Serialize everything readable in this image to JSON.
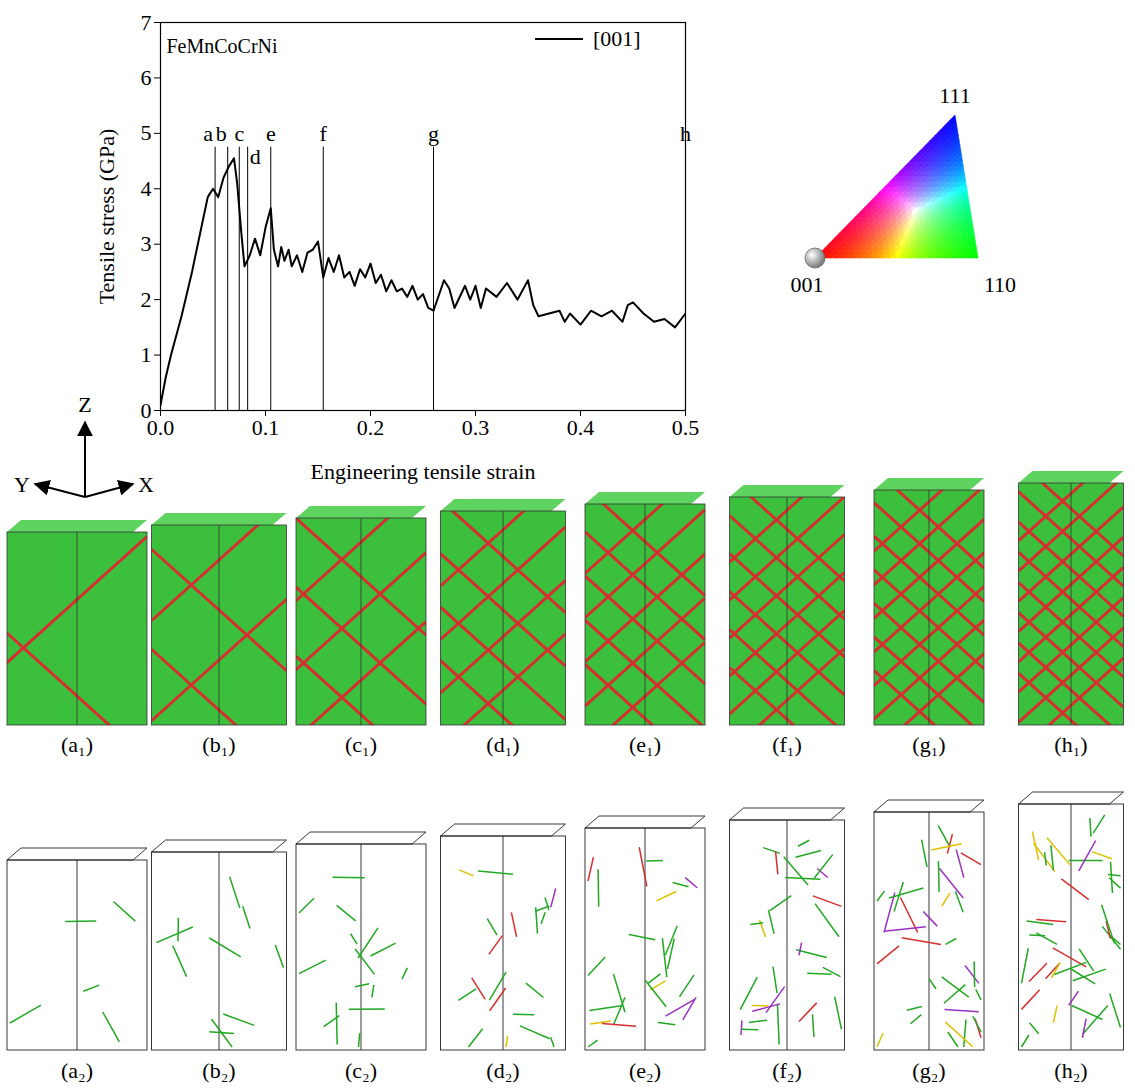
{
  "chart_data": {
    "type": "line",
    "title": "FeMnCoCrNi",
    "x_label": "Engineering tensile strain",
    "y_label": "Tensile stress (GPa)",
    "xlim": [
      0,
      0.5
    ],
    "xticks": [
      {
        "value": 0,
        "label": "0.0"
      },
      {
        "value": 0.1,
        "label": "0.1"
      },
      {
        "value": 0.2,
        "label": "0.2"
      },
      {
        "value": 0.3,
        "label": "0.3"
      },
      {
        "value": 0.4,
        "label": "0.4"
      },
      {
        "value": 0.5,
        "label": "0.5"
      }
    ],
    "ylim": [
      0,
      7
    ],
    "yticks": [
      0,
      1,
      2,
      3,
      4,
      5,
      6,
      7
    ],
    "legend": "top-right",
    "x": [
      0,
      0.005,
      0.01,
      0.02,
      0.03,
      0.04,
      0.045,
      0.05,
      0.055,
      0.06,
      0.065,
      0.07,
      0.073,
      0.077,
      0.08,
      0.085,
      0.09,
      0.095,
      0.1,
      0.105,
      0.108,
      0.112,
      0.115,
      0.118,
      0.122,
      0.125,
      0.13,
      0.135,
      0.14,
      0.145,
      0.15,
      0.155,
      0.16,
      0.165,
      0.17,
      0.175,
      0.18,
      0.185,
      0.19,
      0.195,
      0.2,
      0.205,
      0.21,
      0.215,
      0.22,
      0.225,
      0.23,
      0.235,
      0.24,
      0.245,
      0.25,
      0.255,
      0.26,
      0.27,
      0.275,
      0.28,
      0.29,
      0.295,
      0.3,
      0.305,
      0.31,
      0.32,
      0.33,
      0.34,
      0.35,
      0.355,
      0.36,
      0.37,
      0.38,
      0.385,
      0.39,
      0.4,
      0.41,
      0.42,
      0.43,
      0.44,
      0.445,
      0.45,
      0.46,
      0.47,
      0.48,
      0.49,
      0.5
    ],
    "series": [
      {
        "name": "[001]",
        "color": "#000000",
        "values": [
          0.1,
          0.6,
          1.0,
          1.7,
          2.5,
          3.4,
          3.85,
          4.0,
          3.85,
          4.2,
          4.4,
          4.55,
          4.1,
          3.2,
          2.6,
          2.8,
          3.1,
          2.8,
          3.3,
          3.65,
          2.9,
          2.6,
          2.95,
          2.7,
          2.9,
          2.6,
          2.8,
          2.5,
          2.85,
          2.9,
          3.05,
          2.4,
          2.75,
          2.5,
          2.8,
          2.4,
          2.5,
          2.25,
          2.55,
          2.4,
          2.65,
          2.3,
          2.45,
          2.15,
          2.35,
          2.15,
          2.2,
          2.05,
          2.25,
          2.0,
          2.1,
          1.85,
          1.8,
          2.35,
          2.2,
          1.85,
          2.25,
          2.0,
          2.25,
          1.85,
          2.2,
          2.05,
          2.3,
          2.0,
          2.35,
          1.9,
          1.7,
          1.75,
          1.8,
          1.6,
          1.75,
          1.55,
          1.8,
          1.7,
          1.8,
          1.6,
          1.9,
          1.95,
          1.75,
          1.6,
          1.65,
          1.5,
          1.75
        ]
      }
    ],
    "annotations": [
      {
        "label": "a",
        "x": 0.052,
        "y": 4.75
      },
      {
        "label": "b",
        "x": 0.064,
        "y": 4.75
      },
      {
        "label": "c",
        "x": 0.075,
        "y": 4.75
      },
      {
        "label": "d",
        "x": 0.083,
        "y": 4.75
      },
      {
        "label": "e",
        "x": 0.105,
        "y": 4.75
      },
      {
        "label": "f",
        "x": 0.155,
        "y": 4.75
      },
      {
        "label": "g",
        "x": 0.26,
        "y": 4.75
      },
      {
        "label": "h",
        "x": 0.5,
        "y": 4.75
      }
    ]
  },
  "inverse_pole_figure": {
    "corners": {
      "top": "111",
      "left": "001",
      "right": "110"
    },
    "marked_corner": "001"
  },
  "axes_triad": {
    "up": "Z",
    "left": "Y",
    "right": "X"
  },
  "panels": {
    "rows": [
      [
        "(a₁)",
        "(b₁)",
        "(c₁)",
        "(d₁)",
        "(e₁)",
        "(f₁)",
        "(g₁)",
        "(h₁)"
      ],
      [
        "(a₂)",
        "(b₂)",
        "(c₂)",
        "(d₂)",
        "(e₂)",
        "(f₂)",
        "(g₂)",
        "(h₂)"
      ]
    ]
  }
}
